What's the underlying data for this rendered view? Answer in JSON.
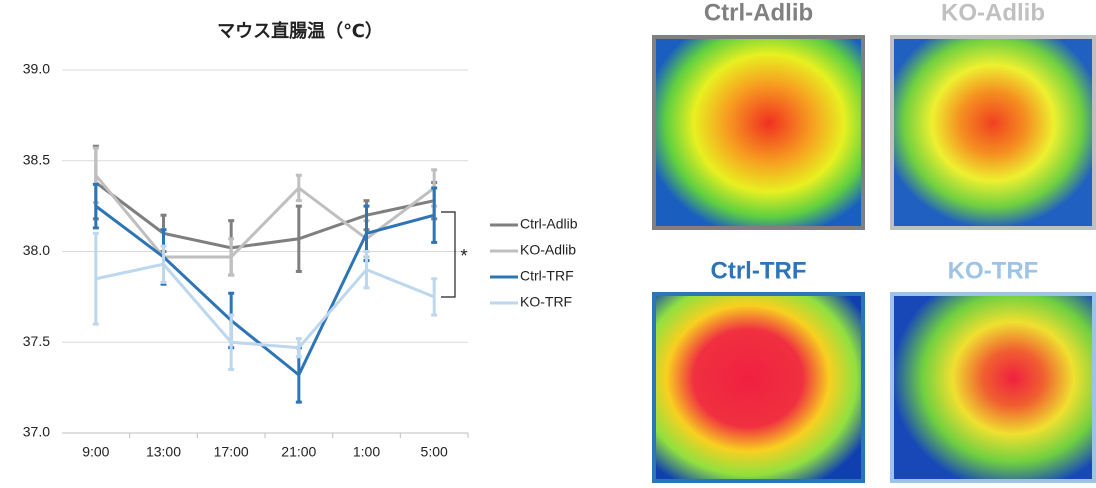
{
  "chart_data": {
    "type": "line",
    "title": "マウス直腸温（℃）",
    "categories": [
      "9:00",
      "13:00",
      "17:00",
      "21:00",
      "1:00",
      "5:00"
    ],
    "series": [
      {
        "name": "Ctrl-Adlib",
        "color": "#7f7f7f",
        "values": [
          38.38,
          38.1,
          38.02,
          38.07,
          38.2,
          38.28
        ],
        "errors": [
          0.2,
          0.1,
          0.15,
          0.18,
          0.08,
          0.1
        ]
      },
      {
        "name": "KO-Adlib",
        "color": "#bfbfbf",
        "values": [
          38.42,
          37.97,
          37.97,
          38.35,
          38.07,
          38.35
        ],
        "errors": [
          0.15,
          0.15,
          0.1,
          0.07,
          0.1,
          0.1
        ]
      },
      {
        "name": "Ctrl-TRF",
        "color": "#2e75b6",
        "values": [
          38.25,
          37.97,
          37.62,
          37.32,
          38.1,
          38.2
        ],
        "errors": [
          0.12,
          0.15,
          0.15,
          0.15,
          0.15,
          0.15
        ]
      },
      {
        "name": "KO-TRF",
        "color": "#bdd7ee",
        "values": [
          37.85,
          37.93,
          37.5,
          37.47,
          37.9,
          37.75
        ],
        "errors": [
          0.25,
          0.1,
          0.15,
          0.05,
          0.1,
          0.1
        ]
      }
    ],
    "ylim": [
      37.0,
      39.0
    ],
    "yticks": [
      {
        "value": 37.0,
        "label": "37.0"
      },
      {
        "value": 37.5,
        "label": "37.5"
      },
      {
        "value": 38.0,
        "label": "38.0"
      },
      {
        "value": 38.5,
        "label": "38.5"
      },
      {
        "value": 39.0,
        "label": "39.0"
      }
    ],
    "grid": true,
    "legend": "right",
    "annotation": "*"
  },
  "images": [
    {
      "label": "Ctrl-Adlib",
      "color": "#808080"
    },
    {
      "label": "KO-Adlib",
      "color": "#c0c0c0"
    },
    {
      "label": "Ctrl-TRF",
      "color": "#2e75b6"
    },
    {
      "label": "KO-TRF",
      "color": "#9dc3e6"
    }
  ]
}
